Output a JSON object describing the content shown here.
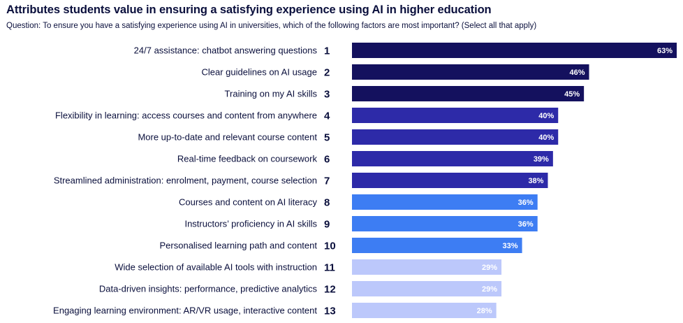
{
  "title": "Attributes students value in ensuring a satisfying experience using AI in higher education",
  "subtitle": "Question: To ensure you have a satisfying experience using AI in universities, which of the following factors are most important? (Select all that apply)",
  "chart_data": {
    "type": "bar",
    "orientation": "horizontal",
    "title": "Attributes students value in ensuring a satisfying experience using AI in higher education",
    "xlim": [
      0,
      63
    ],
    "grid": false,
    "categories": [
      "24/7 assistance: chatbot answering questions",
      "Clear guidelines on AI usage",
      "Training on my AI skills",
      "Flexibility in learning: access courses and content from anywhere",
      "More up-to-date and relevant course content",
      "Real-time feedback on coursework",
      "Streamlined administration: enrolment, payment, course selection",
      "Courses and content on  AI literacy",
      "Instructors’ proficiency in AI skills",
      "Personalised learning path and content",
      "Wide selection of available AI tools with instruction",
      "Data-driven insights: performance, predictive analytics",
      "Engaging learning environment: AR/VR usage, interactive content"
    ],
    "ranks": [
      "1",
      "2",
      "3",
      "4",
      "5",
      "6",
      "7",
      "8",
      "9",
      "10",
      "11",
      "12",
      "13"
    ],
    "values": [
      63,
      46,
      45,
      40,
      40,
      39,
      38,
      36,
      36,
      33,
      29,
      29,
      28
    ],
    "value_labels": [
      "63%",
      "46%",
      "45%",
      "40%",
      "40%",
      "39%",
      "38%",
      "36%",
      "36%",
      "33%",
      "29%",
      "29%",
      "28%"
    ],
    "colors": [
      "#14115e",
      "#14115e",
      "#14115e",
      "#2d2aa8",
      "#2d2aa8",
      "#2d2aa8",
      "#2d2aa8",
      "#3d7df3",
      "#3d7df3",
      "#3d7df3",
      "#bcc8fb",
      "#bcc8fb",
      "#bcc8fb"
    ]
  }
}
